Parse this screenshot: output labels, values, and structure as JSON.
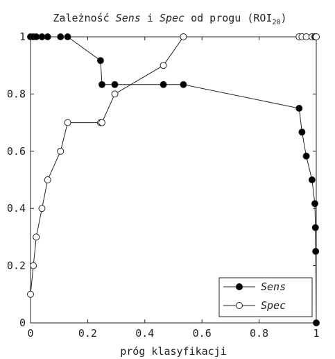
{
  "chart_data": {
    "type": "line",
    "title": {
      "prefix": "Zależność ",
      "series1": "Sens",
      "mid": " i ",
      "series2": "Spec",
      "suffix": " od progu (ROI",
      "subscript": "20",
      "close": ")"
    },
    "xlabel": "próg klasyfikacji",
    "ylabel": "",
    "xlim": [
      0,
      1
    ],
    "ylim": [
      0,
      1
    ],
    "x_ticks": [
      "0",
      "0.2",
      "0.4",
      "0.6",
      "0.8",
      "1"
    ],
    "y_ticks": [
      "0",
      "0.2",
      "0.4",
      "0.6",
      "0.8",
      "1"
    ],
    "grid": false,
    "legend_position": "bottom-right",
    "series": [
      {
        "name": "Sens",
        "marker": "filled-circle",
        "color": "#000000",
        "points": [
          [
            0.0,
            1.0
          ],
          [
            0.01,
            1.0
          ],
          [
            0.02,
            1.0
          ],
          [
            0.04,
            1.0
          ],
          [
            0.06,
            1.0
          ],
          [
            0.105,
            1.0
          ],
          [
            0.13,
            1.0
          ],
          [
            0.245,
            0.917
          ],
          [
            0.25,
            0.833
          ],
          [
            0.295,
            0.833
          ],
          [
            0.465,
            0.833
          ],
          [
            0.535,
            0.833
          ],
          [
            0.94,
            0.75
          ],
          [
            0.95,
            0.667
          ],
          [
            0.965,
            0.583
          ],
          [
            0.985,
            0.5
          ],
          [
            0.995,
            0.417
          ],
          [
            0.997,
            0.333
          ],
          [
            0.998,
            0.25
          ],
          [
            1.0,
            0.0
          ]
        ]
      },
      {
        "name": "Spec",
        "marker": "open-circle",
        "color": "#000000",
        "points": [
          [
            0.0,
            0.1
          ],
          [
            0.01,
            0.2
          ],
          [
            0.02,
            0.3
          ],
          [
            0.04,
            0.4
          ],
          [
            0.06,
            0.5
          ],
          [
            0.105,
            0.6
          ],
          [
            0.13,
            0.7
          ],
          [
            0.245,
            0.7
          ],
          [
            0.25,
            0.7
          ],
          [
            0.295,
            0.8
          ],
          [
            0.465,
            0.9
          ],
          [
            0.535,
            1.0
          ],
          [
            0.94,
            1.0
          ],
          [
            0.95,
            1.0
          ],
          [
            0.965,
            1.0
          ],
          [
            0.985,
            1.0
          ],
          [
            0.995,
            1.0
          ],
          [
            0.997,
            1.0
          ],
          [
            0.998,
            1.0
          ],
          [
            1.0,
            1.0
          ]
        ]
      }
    ]
  }
}
